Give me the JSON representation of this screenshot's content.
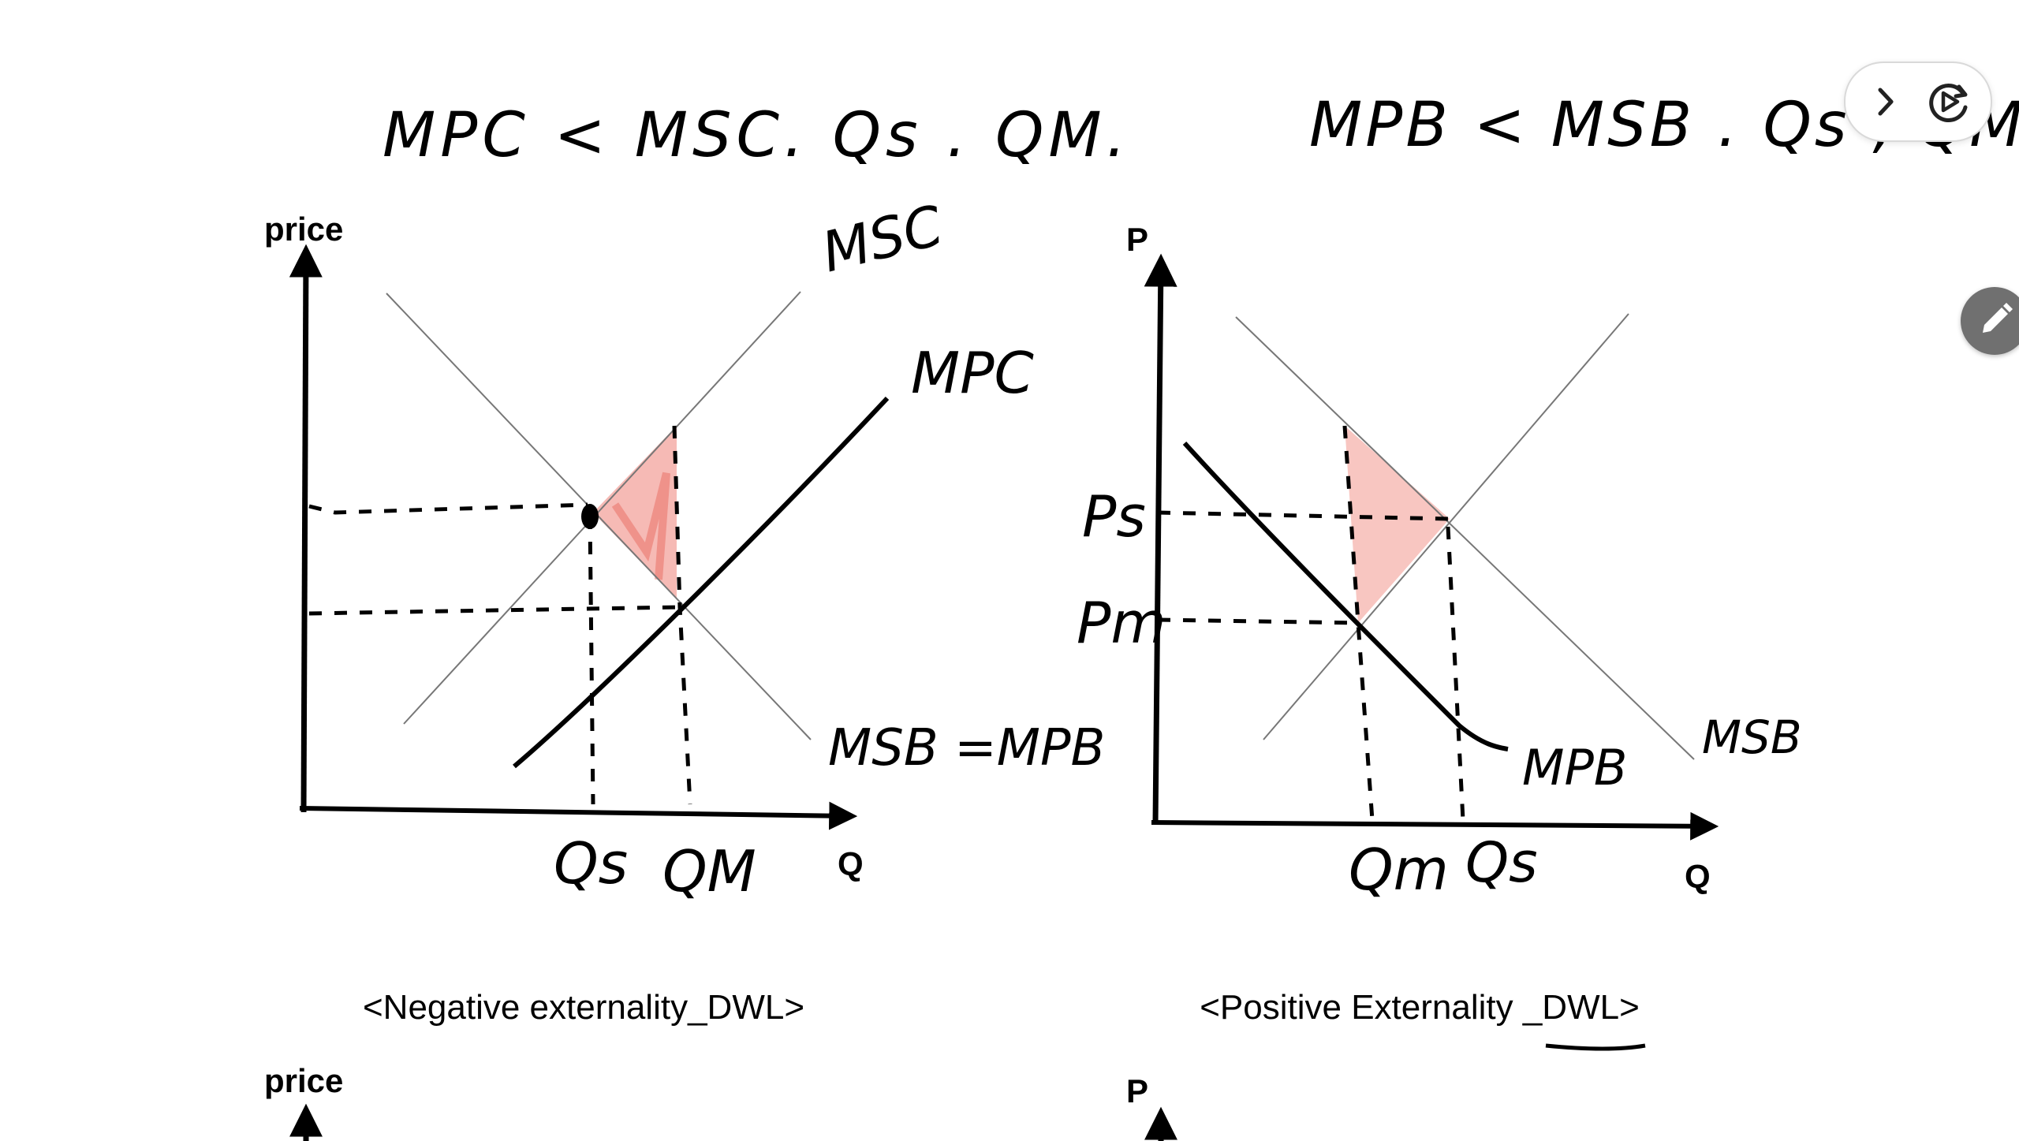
{
  "notes": {
    "left_header": "MPC < MSC.   Qs . QM.",
    "right_header": "MPB < MSB . Qs , QM"
  },
  "left_chart": {
    "y_axis_label": "price",
    "x_axis_label": "Q",
    "curve_labels": {
      "msc": "MSC",
      "mpc": "MPC",
      "msb_mpb": "MSB =MPB"
    },
    "qty_labels": {
      "qs": "Qs",
      "qm": "QM"
    },
    "caption": "<Negative externality_DWL>",
    "shade_color": "#f08c84"
  },
  "right_chart": {
    "y_axis_label": "P",
    "x_axis_label": "Q",
    "curve_labels": {
      "msb": "MSB",
      "mpb": "MPB"
    },
    "price_labels": {
      "ps": "Ps",
      "pm": "Pm"
    },
    "qty_labels": {
      "qm": "Qm",
      "qs": "Qs"
    },
    "caption": "<Positive Externality _DWL>",
    "shade_color": "#f4a7a0"
  },
  "next_charts": {
    "left_y_axis_label": "price",
    "right_y_axis_label": "P"
  },
  "toolbar": {
    "icons": [
      "chevron-right-icon",
      "replay-icon"
    ],
    "fab_icon": "pencil-icon"
  }
}
